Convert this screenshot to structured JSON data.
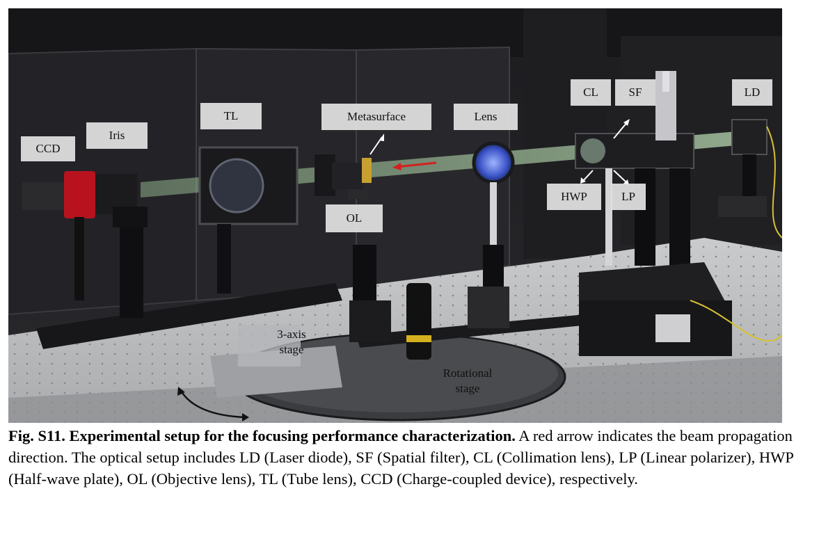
{
  "labels": {
    "ccd": "CCD",
    "iris": "Iris",
    "tl": "TL",
    "metasurface": "Metasurface",
    "lens": "Lens",
    "cl": "CL",
    "sf": "SF",
    "ld": "LD",
    "hwp": "HWP",
    "lp": "LP",
    "ol": "OL",
    "stage_3axis_line1": "3-axis",
    "stage_3axis_line2": "stage",
    "rot_stage_line1": "Rotational",
    "rot_stage_line2": "stage"
  },
  "caption": {
    "bold": "Fig. S11. Experimental setup for the focusing performance characterization.",
    "body": " A red arrow indicates the beam propagation direction. The optical setup includes LD (Laser diode), SF (Spatial filter), CL (Collimation lens), LP (Linear polarizer), HWP (Half-wave plate), OL (Objective lens), TL (Tube lens), CCD (Charge-coupled device), respectively."
  },
  "colors": {
    "beam": "#a8c8a0",
    "propagation_arrow": "#d42020",
    "label_box": "#e2e2e2"
  }
}
